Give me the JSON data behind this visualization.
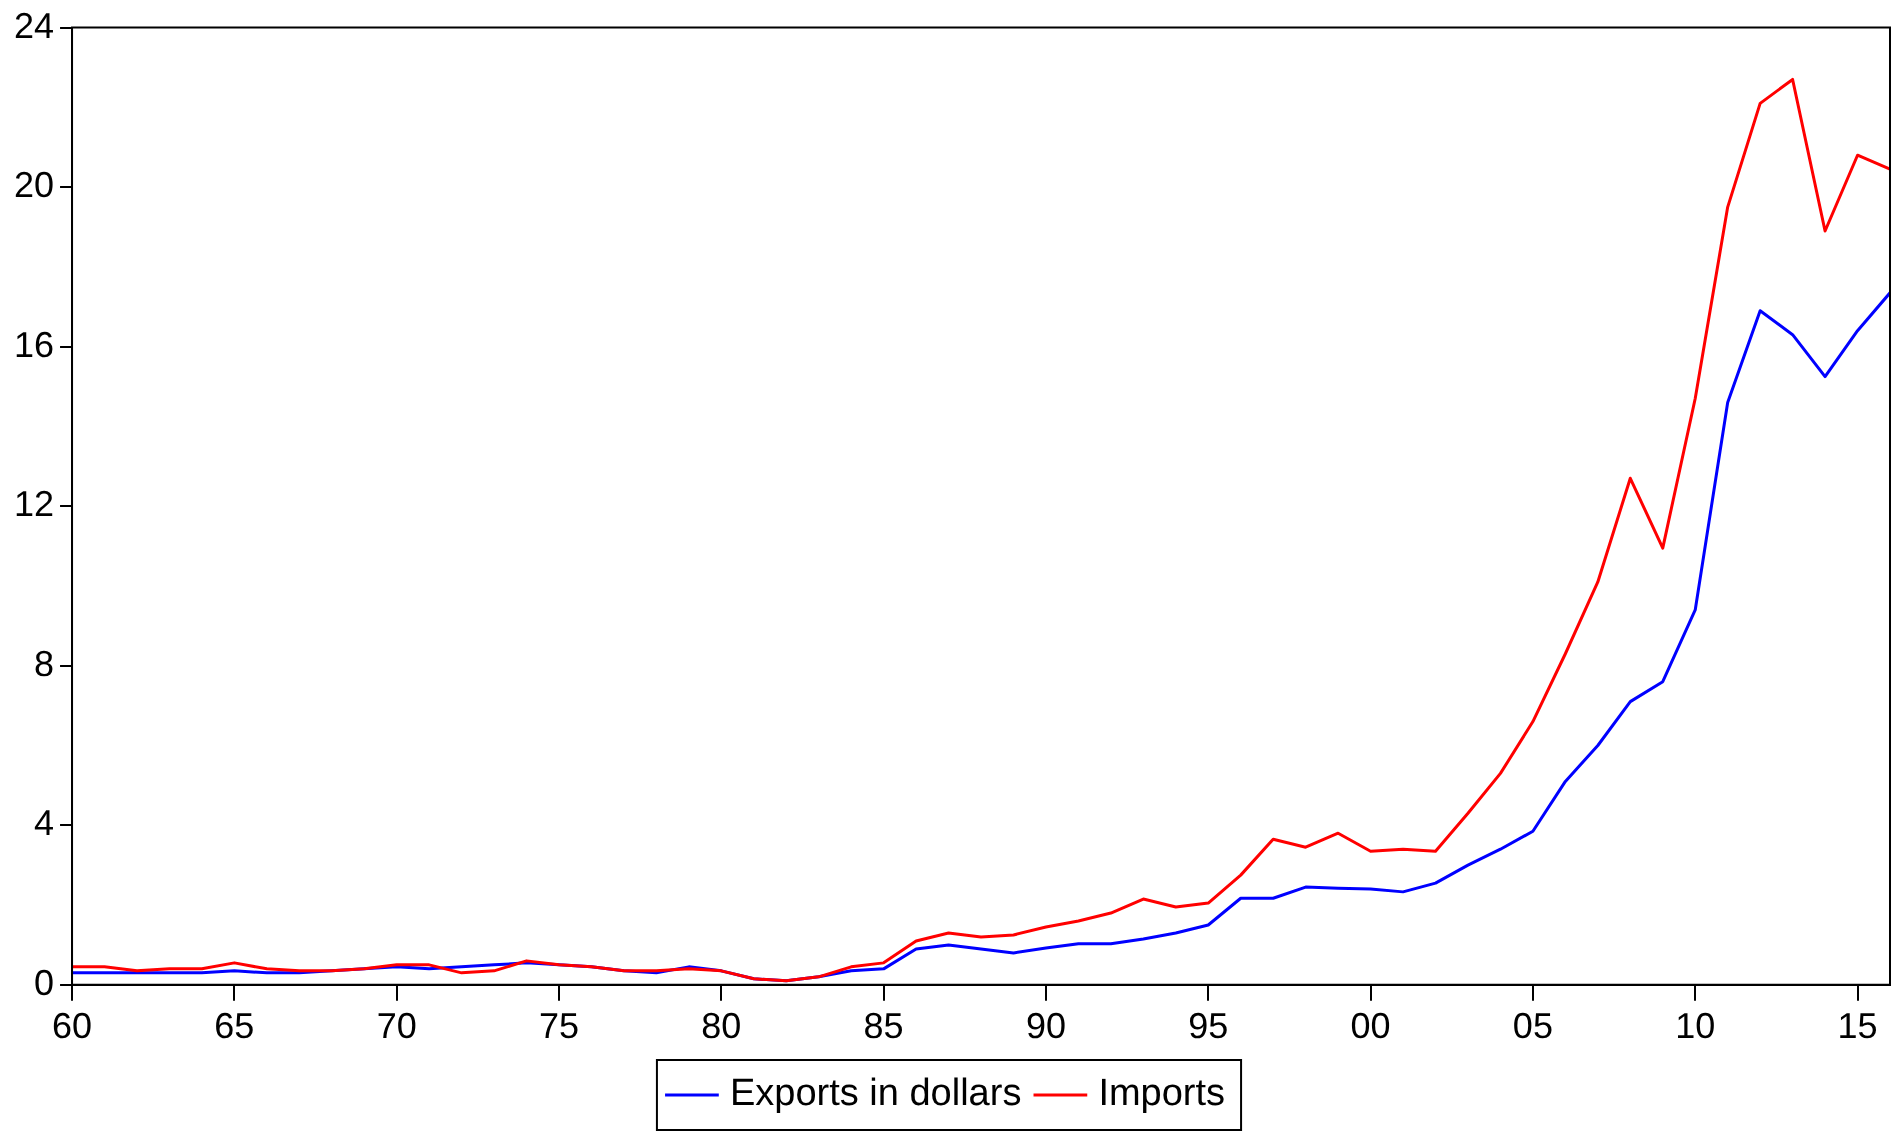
{
  "chart_data": {
    "type": "line",
    "x": [
      1960,
      1961,
      1962,
      1963,
      1964,
      1965,
      1966,
      1967,
      1968,
      1969,
      1970,
      1971,
      1972,
      1973,
      1974,
      1975,
      1976,
      1977,
      1978,
      1979,
      1980,
      1981,
      1982,
      1983,
      1984,
      1985,
      1986,
      1987,
      1988,
      1989,
      1990,
      1991,
      1992,
      1993,
      1994,
      1995,
      1996,
      1997,
      1998,
      1999,
      2000,
      2001,
      2002,
      2003,
      2004,
      2005,
      2006,
      2007,
      2008,
      2009,
      2010,
      2011,
      2012,
      2013,
      2014,
      2015,
      2016
    ],
    "series": [
      {
        "name": "Exports in dollars",
        "color": "#0000ff",
        "values": [
          0.3,
          0.3,
          0.3,
          0.3,
          0.3,
          0.35,
          0.3,
          0.3,
          0.35,
          0.4,
          0.45,
          0.4,
          0.45,
          0.5,
          0.55,
          0.5,
          0.45,
          0.35,
          0.3,
          0.45,
          0.35,
          0.15,
          0.1,
          0.2,
          0.35,
          0.4,
          0.9,
          1.0,
          0.9,
          0.8,
          0.92,
          1.03,
          1.03,
          1.15,
          1.3,
          1.5,
          2.17,
          2.17,
          2.45,
          2.42,
          2.4,
          2.33,
          2.55,
          3.0,
          3.4,
          3.85,
          5.1,
          6.0,
          7.1,
          7.6,
          9.4,
          14.6,
          16.9,
          16.3,
          15.25,
          16.4,
          17.35
        ]
      },
      {
        "name": "Imports",
        "color": "#ff0000",
        "values": [
          0.45,
          0.45,
          0.35,
          0.4,
          0.4,
          0.55,
          0.4,
          0.35,
          0.35,
          0.4,
          0.5,
          0.5,
          0.3,
          0.35,
          0.6,
          0.5,
          0.45,
          0.35,
          0.35,
          0.4,
          0.35,
          0.15,
          0.1,
          0.2,
          0.45,
          0.55,
          1.1,
          1.3,
          1.2,
          1.25,
          1.45,
          1.6,
          1.8,
          2.15,
          1.95,
          2.05,
          2.75,
          3.65,
          3.45,
          3.8,
          3.35,
          3.4,
          3.35,
          4.3,
          5.3,
          6.6,
          8.3,
          10.1,
          12.7,
          10.95,
          14.7,
          19.5,
          22.1,
          22.7,
          18.9,
          20.8,
          20.45
        ]
      }
    ],
    "xlim": [
      1960,
      2016
    ],
    "xticks": [
      {
        "value": 1960,
        "label": "60"
      },
      {
        "value": 1965,
        "label": "65"
      },
      {
        "value": 1970,
        "label": "70"
      },
      {
        "value": 1975,
        "label": "75"
      },
      {
        "value": 1980,
        "label": "80"
      },
      {
        "value": 1985,
        "label": "85"
      },
      {
        "value": 1990,
        "label": "90"
      },
      {
        "value": 1995,
        "label": "95"
      },
      {
        "value": 2000,
        "label": "00"
      },
      {
        "value": 2005,
        "label": "05"
      },
      {
        "value": 2010,
        "label": "10"
      },
      {
        "value": 2015,
        "label": "15"
      }
    ],
    "ylim": [
      0,
      24
    ],
    "yticks": [
      0,
      4,
      8,
      12,
      16,
      20,
      24
    ],
    "grid": false,
    "legend": "bottom",
    "marker": "none",
    "line_style": "solid"
  }
}
